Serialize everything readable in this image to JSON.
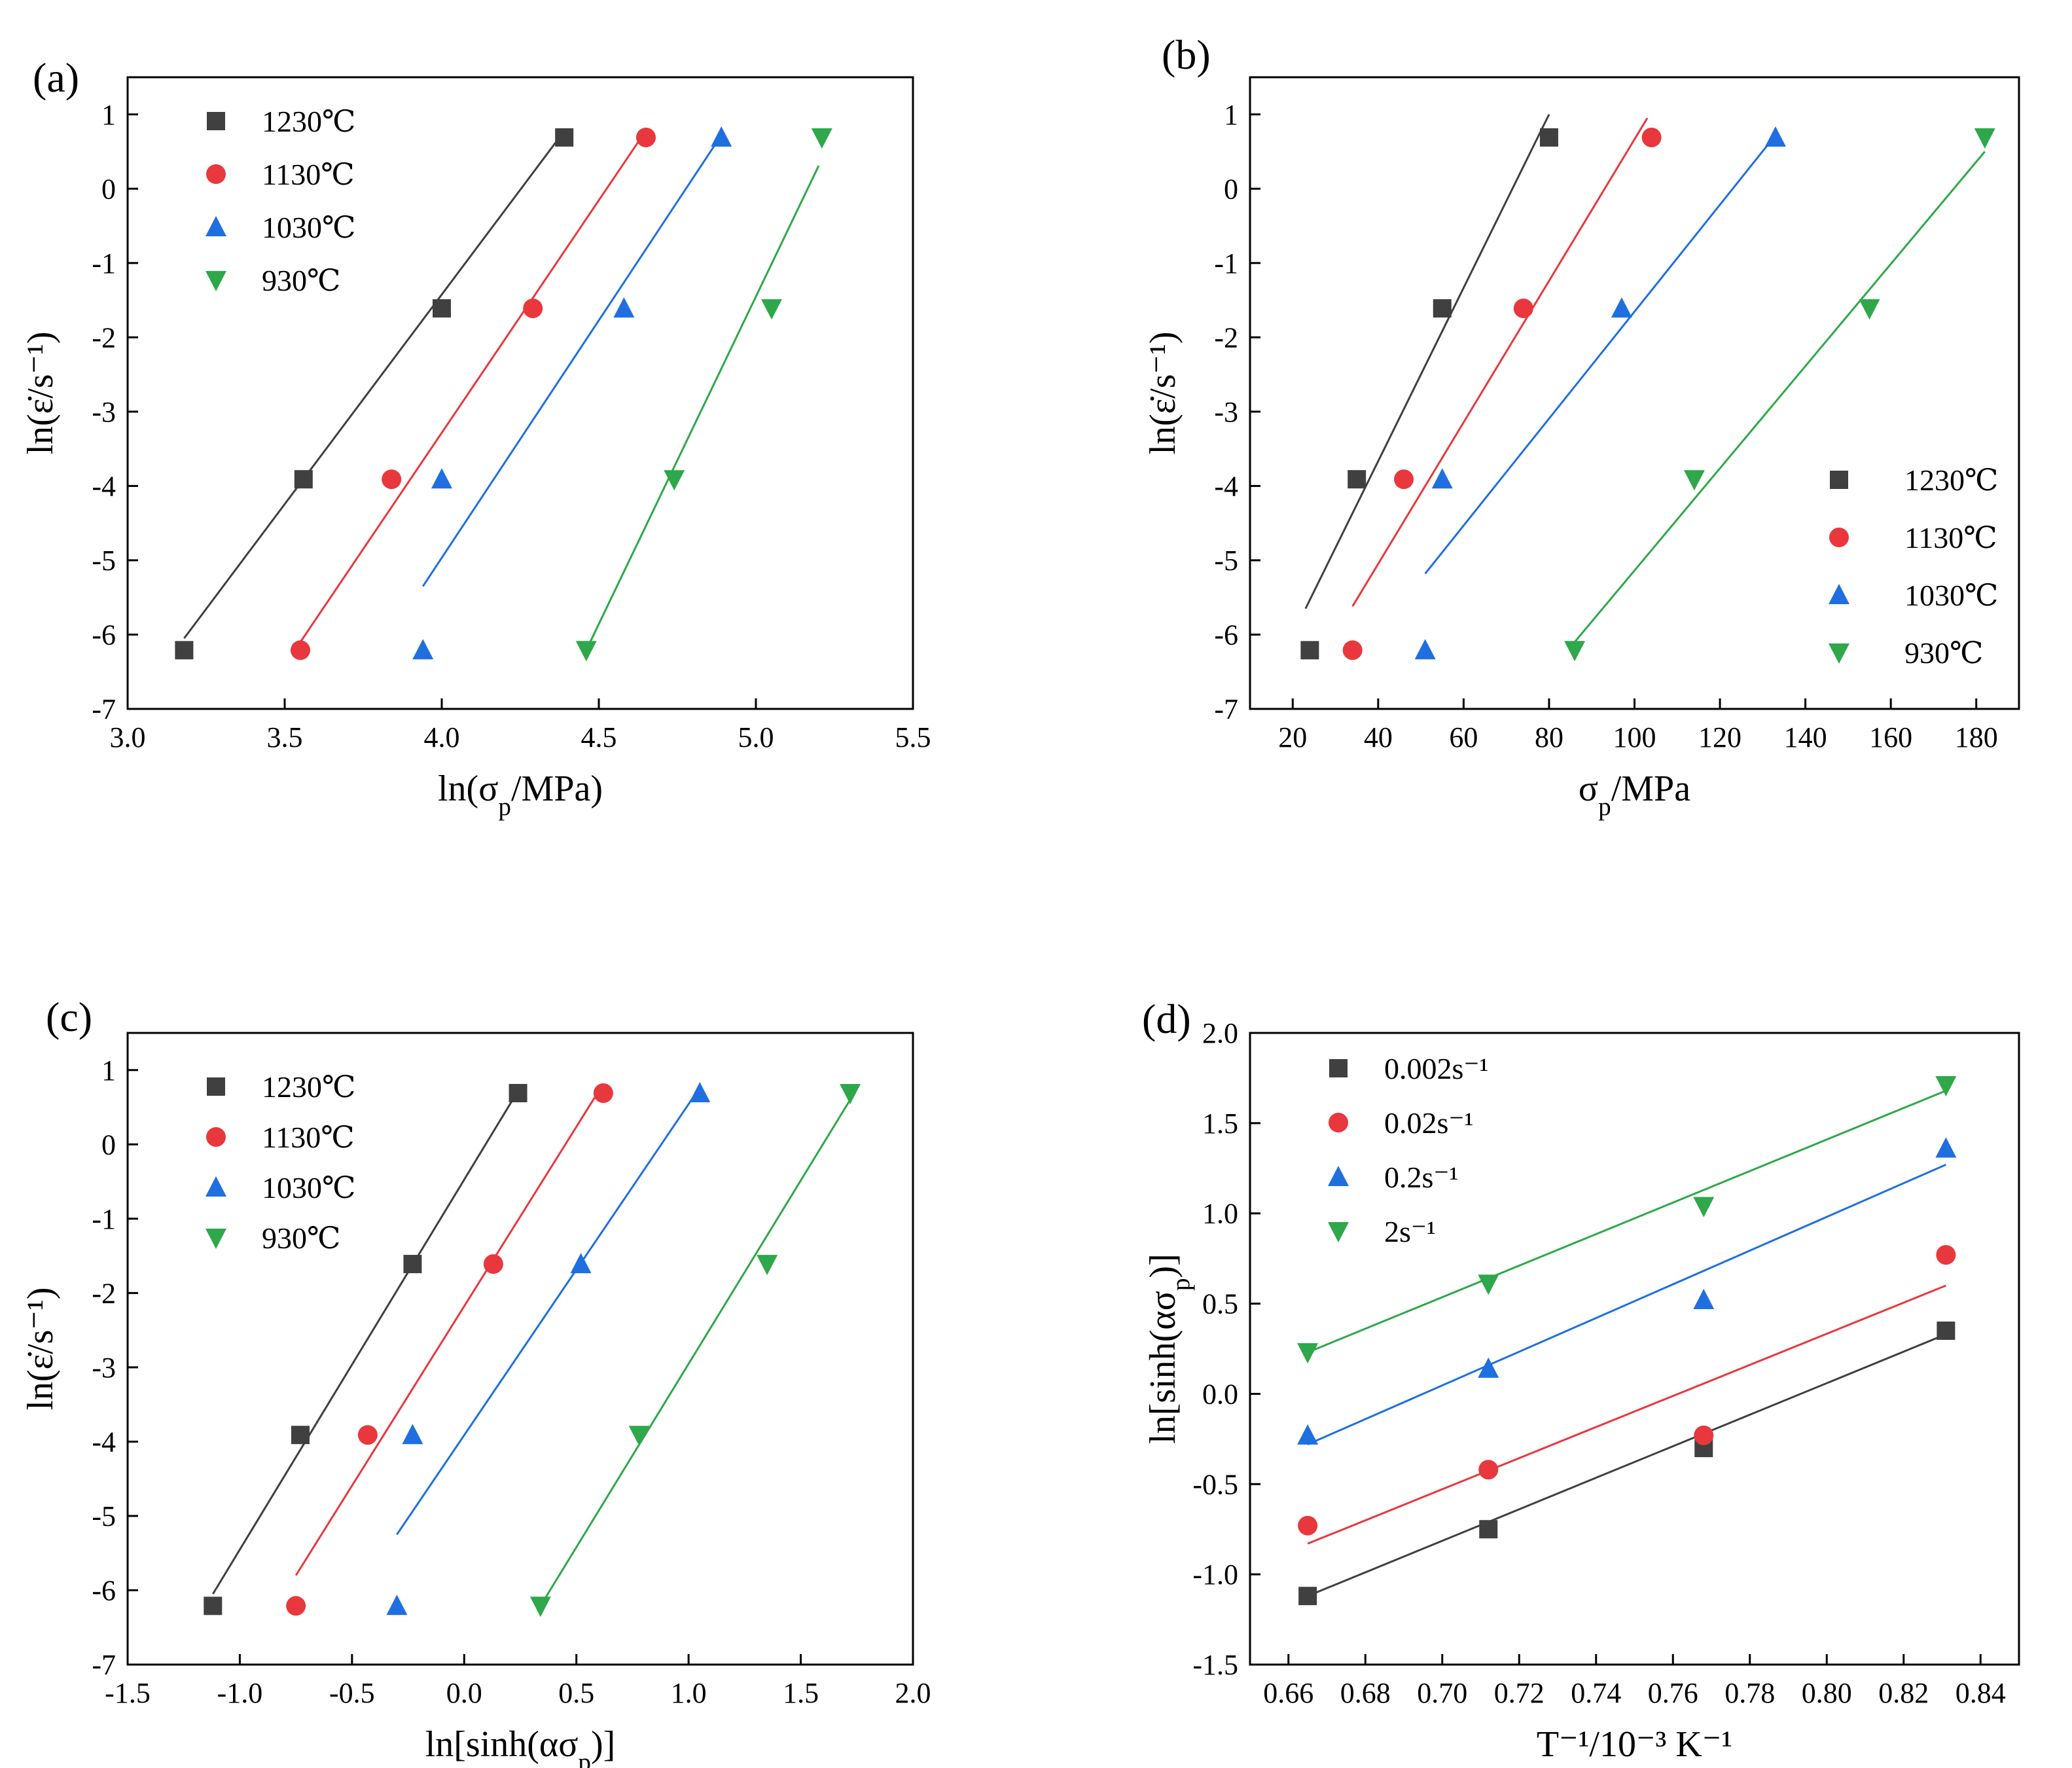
{
  "panels": [
    {
      "id": "a",
      "panel_label": "(a)",
      "xlabel": "ln(σ_p/MPa)",
      "ylabel": "ln(ε̇/s⁻¹)",
      "chart_data": {
        "type": "scatter",
        "xlim": [
          3.0,
          5.5
        ],
        "ylim": [
          -7,
          1.5
        ],
        "xticks": [
          3.0,
          3.5,
          4.0,
          4.5,
          5.0,
          5.5
        ],
        "xtick_labels": [
          "3.0",
          "3.5",
          "4.0",
          "4.5",
          "5.0",
          "5.5"
        ],
        "yticks": [
          -7,
          -6,
          -5,
          -4,
          -3,
          -2,
          -1,
          0,
          1
        ],
        "ytick_labels": [
          "-7",
          "-6",
          "-5",
          "-4",
          "-3",
          "-2",
          "-1",
          "0",
          "1"
        ],
        "legend_position": "top-left",
        "series": [
          {
            "name": "1230℃",
            "marker": "square",
            "color": "#404040",
            "x": [
              3.18,
              3.56,
              4.0,
              4.39
            ],
            "y": [
              -6.21,
              -3.91,
              -1.61,
              0.69
            ],
            "fit": [
              [
                3.18,
                -6.05
              ],
              [
                4.38,
                0.72
              ]
            ]
          },
          {
            "name": "1130℃",
            "marker": "circle",
            "color": "#e8383d",
            "x": [
              3.55,
              3.84,
              4.29,
              4.65
            ],
            "y": [
              -6.21,
              -3.91,
              -1.61,
              0.69
            ],
            "fit": [
              [
                3.55,
                -6.1
              ],
              [
                4.64,
                0.72
              ]
            ]
          },
          {
            "name": "1030℃",
            "marker": "triangle-up",
            "color": "#1f6fe0",
            "x": [
              3.94,
              4.0,
              4.58,
              4.89
            ],
            "y": [
              -6.21,
              -3.91,
              -1.61,
              0.69
            ],
            "fit": [
              [
                3.94,
                -5.35
              ],
              [
                4.89,
                0.72
              ]
            ]
          },
          {
            "name": "930℃",
            "marker": "triangle-down",
            "color": "#2ea84a",
            "x": [
              4.46,
              4.74,
              5.05,
              5.21
            ],
            "y": [
              -6.21,
              -3.91,
              -1.61,
              0.69
            ],
            "fit": [
              [
                4.46,
                -6.21
              ],
              [
                5.2,
                0.31
              ]
            ]
          }
        ]
      }
    },
    {
      "id": "b",
      "panel_label": "(b)",
      "xlabel": "σ_p/MPa",
      "ylabel": "ln(ε̇/s⁻¹)",
      "chart_data": {
        "type": "scatter",
        "xlim": [
          10,
          190
        ],
        "ylim": [
          -7,
          1.5
        ],
        "xticks": [
          20,
          40,
          60,
          80,
          100,
          120,
          140,
          160,
          180
        ],
        "xtick_labels": [
          "20",
          "40",
          "60",
          "80",
          "100",
          "120",
          "140",
          "160",
          "180"
        ],
        "yticks": [
          -7,
          -6,
          -5,
          -4,
          -3,
          -2,
          -1,
          0,
          1
        ],
        "ytick_labels": [
          "-7",
          "-6",
          "-5",
          "-4",
          "-3",
          "-2",
          "-1",
          "0",
          "1"
        ],
        "legend_position": "bottom-right",
        "series": [
          {
            "name": "1230℃",
            "marker": "square",
            "color": "#404040",
            "x": [
              24,
              35,
              55,
              80
            ],
            "y": [
              -6.21,
              -3.91,
              -1.61,
              0.69
            ],
            "fit": [
              [
                23,
                -5.65
              ],
              [
                80,
                1.0
              ]
            ]
          },
          {
            "name": "1130℃",
            "marker": "circle",
            "color": "#e8383d",
            "x": [
              34,
              46,
              74,
              104
            ],
            "y": [
              -6.21,
              -3.91,
              -1.61,
              0.69
            ],
            "fit": [
              [
                34,
                -5.62
              ],
              [
                103,
                0.95
              ]
            ]
          },
          {
            "name": "1030℃",
            "marker": "triangle-up",
            "color": "#1f6fe0",
            "x": [
              51,
              55,
              97,
              133
            ],
            "y": [
              -6.21,
              -3.91,
              -1.61,
              0.69
            ],
            "fit": [
              [
                51,
                -5.18
              ],
              [
                133,
                0.72
              ]
            ]
          },
          {
            "name": "930℃",
            "marker": "triangle-down",
            "color": "#2ea84a",
            "x": [
              86,
              114,
              155,
              182
            ],
            "y": [
              -6.21,
              -3.91,
              -1.61,
              0.69
            ],
            "fit": [
              [
                86,
                -6.1
              ],
              [
                182,
                0.5
              ]
            ]
          }
        ]
      }
    },
    {
      "id": "c",
      "panel_label": "(c)",
      "xlabel": "ln[sinh(ασ_p)]",
      "ylabel": "ln(ε̇/s⁻¹)",
      "chart_data": {
        "type": "scatter",
        "xlim": [
          -1.5,
          2.0
        ],
        "ylim": [
          -7,
          1.5
        ],
        "xticks": [
          -1.5,
          -1.0,
          -0.5,
          0.0,
          0.5,
          1.0,
          1.5,
          2.0
        ],
        "xtick_labels": [
          "-1.5",
          "-1.0",
          "-0.5",
          "0.0",
          "0.5",
          "1.0",
          "1.5",
          "2.0"
        ],
        "yticks": [
          -7,
          -6,
          -5,
          -4,
          -3,
          -2,
          -1,
          0,
          1
        ],
        "ytick_labels": [
          "-7",
          "-6",
          "-5",
          "-4",
          "-3",
          "-2",
          "-1",
          "0",
          "1"
        ],
        "legend_position": "top-left",
        "series": [
          {
            "name": "1230℃",
            "marker": "square",
            "color": "#404040",
            "x": [
              -1.12,
              -0.73,
              -0.23,
              0.24
            ],
            "y": [
              -6.21,
              -3.91,
              -1.61,
              0.69
            ],
            "fit": [
              [
                -1.12,
                -6.05
              ],
              [
                0.24,
                0.72
              ]
            ]
          },
          {
            "name": "1130℃",
            "marker": "circle",
            "color": "#e8383d",
            "x": [
              -0.75,
              -0.43,
              0.13,
              0.62
            ],
            "y": [
              -6.21,
              -3.91,
              -1.61,
              0.69
            ],
            "fit": [
              [
                -0.75,
                -5.8
              ],
              [
                0.6,
                0.72
              ]
            ]
          },
          {
            "name": "1030℃",
            "marker": "triangle-up",
            "color": "#1f6fe0",
            "x": [
              -0.3,
              -0.23,
              0.52,
              1.05
            ],
            "y": [
              -6.21,
              -3.91,
              -1.61,
              0.69
            ],
            "fit": [
              [
                -0.3,
                -5.25
              ],
              [
                1.04,
                0.72
              ]
            ]
          },
          {
            "name": "930℃",
            "marker": "triangle-down",
            "color": "#2ea84a",
            "x": [
              0.34,
              0.78,
              1.35,
              1.72
            ],
            "y": [
              -6.21,
              -3.91,
              -1.61,
              0.69
            ],
            "fit": [
              [
                0.34,
                -6.21
              ],
              [
                1.72,
                0.6
              ]
            ]
          }
        ]
      }
    },
    {
      "id": "d",
      "panel_label": "(d)",
      "xlabel": "T⁻¹/10⁻³ K⁻¹",
      "ylabel": "ln[sinh(ασ_p)]",
      "chart_data": {
        "type": "scatter",
        "xlim": [
          0.65,
          0.85
        ],
        "ylim": [
          -1.5,
          2.0
        ],
        "xticks": [
          0.66,
          0.68,
          0.7,
          0.72,
          0.74,
          0.76,
          0.78,
          0.8,
          0.82,
          0.84
        ],
        "xtick_labels": [
          "0.66",
          "0.68",
          "0.70",
          "0.72",
          "0.74",
          "0.76",
          "0.78",
          "0.80",
          "0.82",
          "0.84"
        ],
        "yticks": [
          -1.5,
          -1.0,
          -0.5,
          0.0,
          0.5,
          1.0,
          1.5,
          2.0
        ],
        "ytick_labels": [
          "-1.5",
          "-1.0",
          "-0.5",
          "0.0",
          "0.5",
          "1.0",
          "1.5",
          "2.0"
        ],
        "legend_position": "top-left",
        "series": [
          {
            "name": "0.002s⁻¹",
            "marker": "square",
            "color": "#404040",
            "x": [
              0.665,
              0.712,
              0.768,
              0.831
            ],
            "y": [
              -1.12,
              -0.75,
              -0.3,
              0.35
            ],
            "fit": [
              [
                0.665,
                -1.12
              ],
              [
                0.831,
                0.33
              ]
            ]
          },
          {
            "name": "0.02s⁻¹",
            "marker": "circle",
            "color": "#e8383d",
            "x": [
              0.665,
              0.712,
              0.768,
              0.831
            ],
            "y": [
              -0.73,
              -0.42,
              -0.23,
              0.77
            ],
            "fit": [
              [
                0.665,
                -0.83
              ],
              [
                0.831,
                0.6
              ]
            ]
          },
          {
            "name": "0.2s⁻¹",
            "marker": "triangle-up",
            "color": "#1f6fe0",
            "x": [
              0.665,
              0.712,
              0.768,
              0.831
            ],
            "y": [
              -0.23,
              0.14,
              0.52,
              1.36
            ],
            "fit": [
              [
                0.665,
                -0.28
              ],
              [
                0.831,
                1.27
              ]
            ]
          },
          {
            "name": "2s⁻¹",
            "marker": "triangle-down",
            "color": "#2ea84a",
            "x": [
              0.665,
              0.712,
              0.768,
              0.831
            ],
            "y": [
              0.23,
              0.61,
              1.04,
              1.71
            ],
            "fit": [
              [
                0.665,
                0.23
              ],
              [
                0.831,
                1.68
              ]
            ]
          }
        ]
      }
    }
  ]
}
